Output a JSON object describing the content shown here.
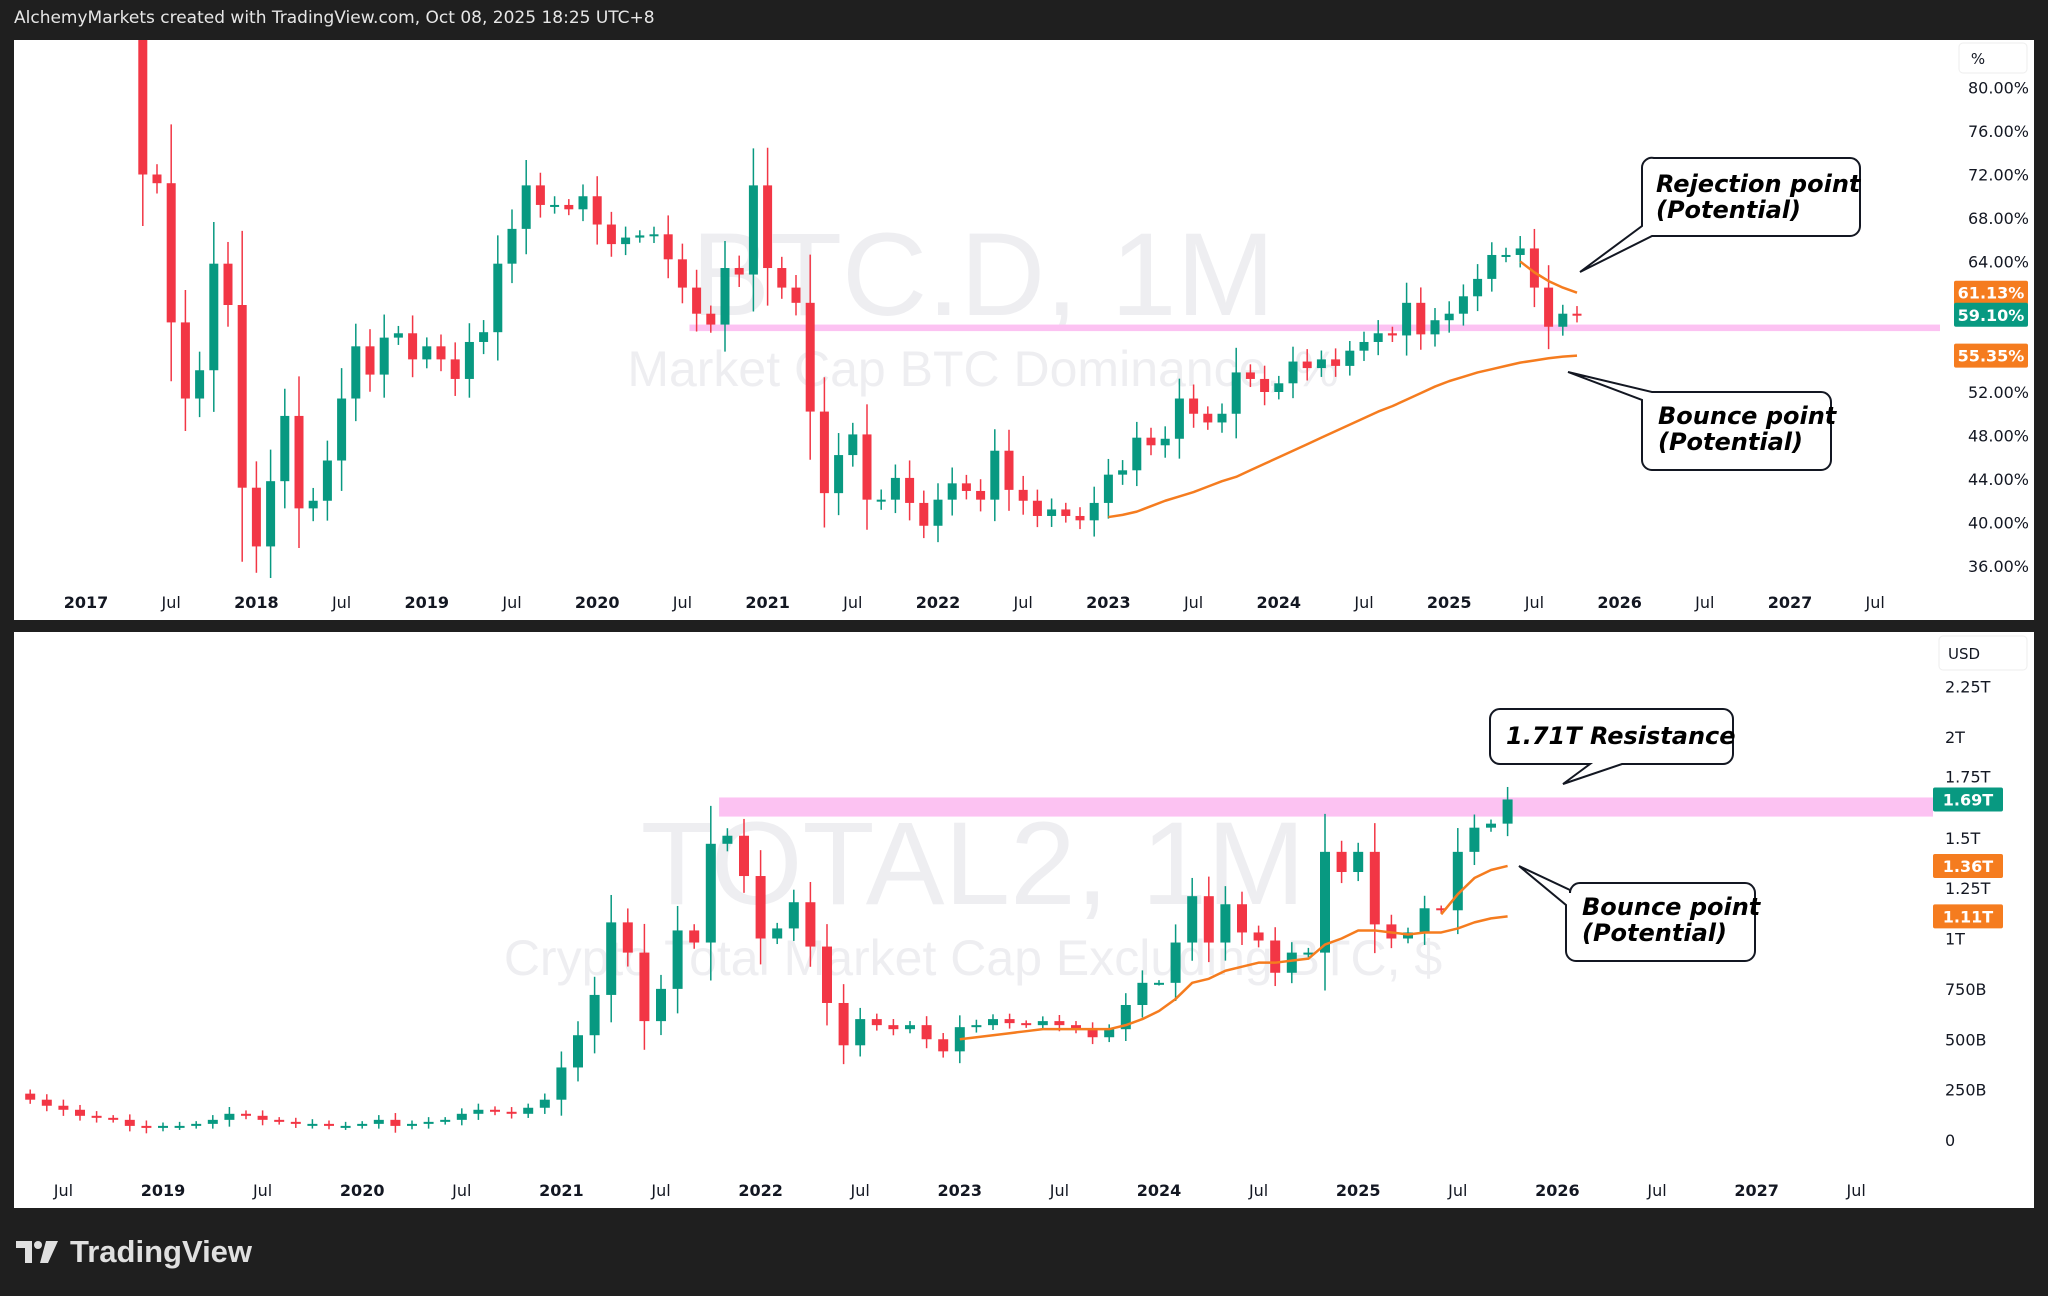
{
  "header": {
    "text": "AlchemyMarkets created with TradingView.com, Oct 08, 2025 18:25 UTC+8"
  },
  "footer": {
    "logo_text": "TradingView"
  },
  "colors": {
    "up": "#089981",
    "down": "#f23645",
    "ema": "#f57c1f",
    "band": "#fcc2f2",
    "watermark": "#eeeef1"
  },
  "chart_data": [
    {
      "type": "candlestick",
      "symbol_title": "BTC.D, 1M",
      "subtitle": "Market Cap BTC Dominance, %",
      "unit_label": "%",
      "first_month": "2017-05",
      "first_open": 84.4,
      "closes": [
        72.0,
        71.2,
        58.4,
        51.4,
        54.0,
        63.8,
        60.0,
        43.2,
        37.8,
        43.8,
        49.8,
        41.3,
        42.0,
        45.7,
        51.4,
        56.2,
        53.6,
        57.0,
        57.4,
        55.0,
        56.2,
        55.0,
        53.2,
        56.6,
        57.5,
        63.8,
        67.0,
        71.0,
        69.2,
        69.2,
        68.8,
        70.0,
        67.4,
        65.6,
        66.2,
        66.4,
        66.5,
        64.2,
        61.6,
        59.2,
        58.2,
        63.4,
        62.8,
        71.0,
        63.4,
        61.6,
        60.2,
        50.2,
        42.7,
        46.2,
        48.1,
        42.1,
        42.1,
        44.1,
        41.8,
        39.7,
        42.1,
        43.6,
        42.9,
        42.1,
        46.6,
        43.0,
        42.0,
        40.6,
        41.2,
        40.6,
        40.2,
        41.8,
        44.4,
        44.8,
        47.8,
        47.1,
        47.7,
        51.4,
        50.0,
        49.2,
        50.0,
        53.8,
        53.2,
        52.0,
        52.8,
        54.8,
        54.2,
        55.0,
        54.4,
        55.8,
        56.6,
        57.4,
        57.2,
        60.2,
        57.3,
        58.6,
        59.2,
        60.8,
        62.4,
        64.6,
        64.6,
        65.2,
        61.6,
        58.0,
        59.2,
        59.1
      ],
      "ema_upper": {
        "start": "2025-06",
        "values": [
          64.0,
          63.0,
          62.2,
          61.6,
          61.13
        ]
      },
      "ema_lower": {
        "start": "2023-01",
        "values": [
          40.5,
          40.7,
          41.0,
          41.5,
          42.0,
          42.4,
          42.8,
          43.3,
          43.8,
          44.2,
          44.8,
          45.4,
          46.0,
          46.6,
          47.2,
          47.8,
          48.4,
          49.0,
          49.6,
          50.2,
          50.7,
          51.3,
          51.9,
          52.5,
          53.0,
          53.4,
          53.8,
          54.1,
          54.4,
          54.7,
          54.9,
          55.1,
          55.25,
          55.35
        ]
      },
      "zone": {
        "from": "2020-08",
        "range": [
          57.6,
          58.2
        ]
      },
      "y_ticks": [
        "80.00%",
        "76.00%",
        "72.00%",
        "68.00%",
        "64.00%",
        "52.00%",
        "48.00%",
        "44.00%",
        "40.00%",
        "36.00%"
      ],
      "y_tick_values": [
        80,
        76,
        72,
        68,
        64,
        52,
        48,
        44,
        40,
        36
      ],
      "ylim": [
        34,
        82
      ],
      "x_ticks": [
        "2017",
        "Jul",
        "2018",
        "Jul",
        "2019",
        "Jul",
        "2020",
        "Jul",
        "2021",
        "Jul",
        "2022",
        "Jul",
        "2023",
        "Jul",
        "2024",
        "Jul",
        "2025",
        "Jul",
        "2026",
        "Jul",
        "2027",
        "Jul"
      ],
      "badges": [
        {
          "label": "61.13%",
          "value": 61.13,
          "color": "#f57c1f"
        },
        {
          "label": "59.10%",
          "value": 59.1,
          "color": "#089981"
        },
        {
          "label": "55.35%",
          "value": 55.35,
          "color": "#f57c1f"
        }
      ],
      "callouts": [
        {
          "line1": "Rejection point",
          "line2": "(Potential)"
        },
        {
          "line1": "Bounce point",
          "line2": "(Potential)"
        }
      ]
    },
    {
      "type": "candlestick",
      "symbol_title": "TOTAL2, 1M",
      "subtitle": "Crypto Total Market Cap Excluding BTC, $",
      "unit_label": "USD",
      "value_unit": "trillion USD",
      "first_month": "2018-05",
      "first_open": 0.23,
      "closes": [
        0.2,
        0.17,
        0.15,
        0.12,
        0.11,
        0.1,
        0.07,
        0.06,
        0.07,
        0.07,
        0.08,
        0.1,
        0.13,
        0.12,
        0.1,
        0.09,
        0.08,
        0.08,
        0.07,
        0.07,
        0.08,
        0.1,
        0.07,
        0.08,
        0.09,
        0.1,
        0.13,
        0.15,
        0.14,
        0.13,
        0.16,
        0.2,
        0.36,
        0.52,
        0.72,
        1.08,
        0.93,
        0.59,
        0.75,
        1.04,
        0.98,
        1.47,
        1.51,
        1.31,
        1.0,
        1.05,
        1.18,
        0.96,
        0.68,
        0.47,
        0.6,
        0.57,
        0.55,
        0.57,
        0.5,
        0.44,
        0.56,
        0.57,
        0.6,
        0.58,
        0.57,
        0.59,
        0.57,
        0.55,
        0.51,
        0.55,
        0.67,
        0.78,
        0.78,
        0.98,
        1.21,
        0.98,
        1.17,
        1.03,
        0.99,
        0.83,
        0.93,
        0.93,
        1.43,
        1.33,
        1.43,
        1.07,
        1.0,
        1.03,
        1.15,
        1.14,
        1.43,
        1.55,
        1.57,
        1.69
      ],
      "ema_upper": {
        "start": "2025-06",
        "values": [
          1.12,
          1.22,
          1.3,
          1.34,
          1.36
        ]
      },
      "ema_lower": {
        "start": "2023-01",
        "values": [
          0.5,
          0.51,
          0.52,
          0.53,
          0.54,
          0.55,
          0.55,
          0.55,
          0.55,
          0.55,
          0.57,
          0.6,
          0.64,
          0.7,
          0.78,
          0.8,
          0.84,
          0.86,
          0.88,
          0.88,
          0.89,
          0.9,
          0.97,
          1.0,
          1.04,
          1.04,
          1.03,
          1.02,
          1.03,
          1.03,
          1.05,
          1.08,
          1.1,
          1.11
        ]
      },
      "zone": {
        "from": "2021-11",
        "range": [
          1.605,
          1.7
        ]
      },
      "y_ticks": [
        "2.25T",
        "2T",
        "1.75T",
        "1.5T",
        "1.25T",
        "1T",
        "750B",
        "500B",
        "250B",
        "0"
      ],
      "y_tick_values": [
        2.25,
        2,
        1.75,
        1.5,
        1.25,
        1,
        0.75,
        0.5,
        0.25,
        0
      ],
      "ylim": [
        0,
        2.3
      ],
      "x_ticks": [
        "Jul",
        "2019",
        "Jul",
        "2020",
        "Jul",
        "2021",
        "Jul",
        "2022",
        "Jul",
        "2023",
        "Jul",
        "2024",
        "Jul",
        "2025",
        "Jul",
        "2026",
        "Jul",
        "2027",
        "Jul"
      ],
      "badges": [
        {
          "label": "1.69T",
          "value": 1.69,
          "color": "#089981"
        },
        {
          "label": "1.36T",
          "value": 1.36,
          "color": "#f57c1f"
        },
        {
          "label": "1.11T",
          "value": 1.11,
          "color": "#f57c1f"
        }
      ],
      "callouts": [
        {
          "line1": "1.71T Resistance"
        },
        {
          "line1": "Bounce point",
          "line2": "(Potential)"
        }
      ]
    }
  ]
}
